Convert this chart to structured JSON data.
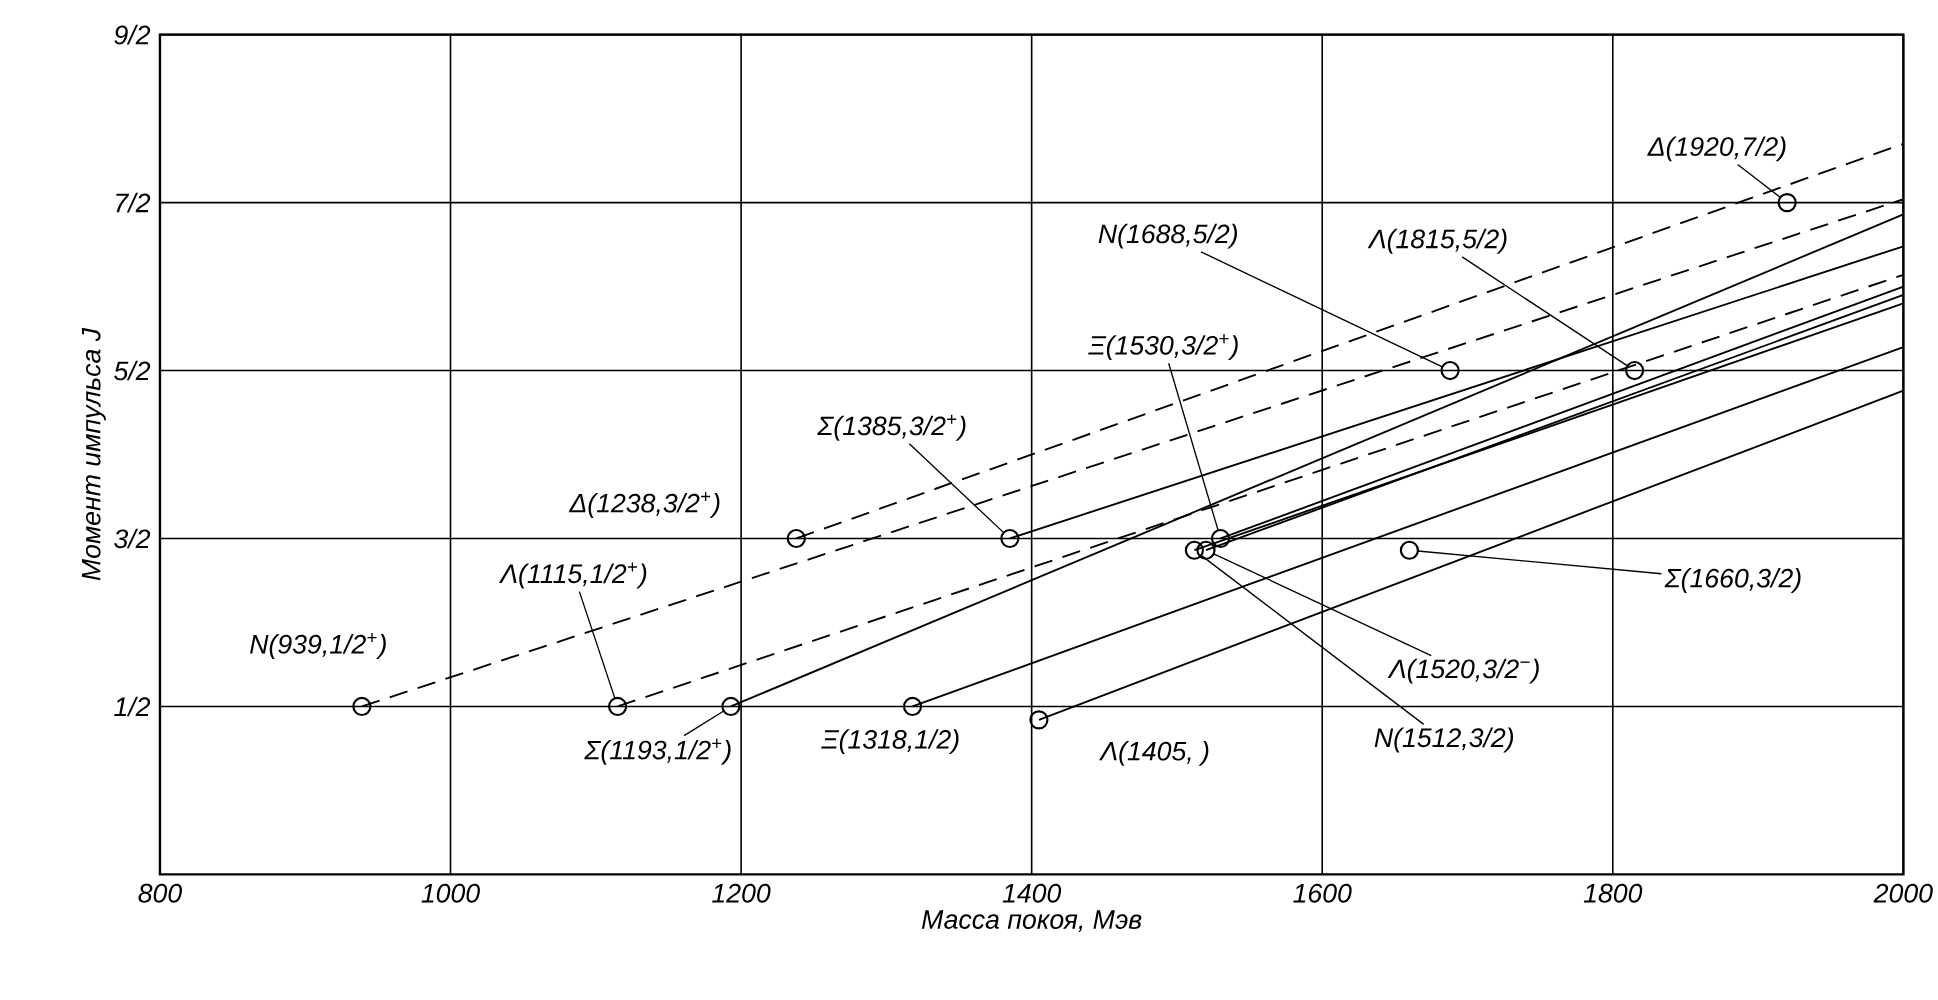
{
  "chart_data": {
    "type": "line",
    "xlabel": "Масса покоя, Мэв",
    "ylabel": "Момент импульса J",
    "xlim": [
      800,
      2000
    ],
    "ylim": [
      -0.5,
      4.5
    ],
    "xticks": [
      800,
      1000,
      1200,
      1400,
      1600,
      1800,
      2000
    ],
    "yticks": [
      {
        "value": 0.5,
        "label": "1/2"
      },
      {
        "value": 1.5,
        "label": "3/2"
      },
      {
        "value": 2.5,
        "label": "5/2"
      },
      {
        "value": 3.5,
        "label": "7/2"
      },
      {
        "value": 4.5,
        "label": "9/2"
      }
    ],
    "grid": true,
    "series": [
      {
        "type": "line",
        "line_style": "dashed",
        "marker": "none",
        "color": "#000000",
        "x": [
          1238,
          2000
        ],
        "values": [
          1.5,
          3.85
        ]
      },
      {
        "type": "line",
        "line_style": "dashed",
        "marker": "none",
        "color": "#000000",
        "x": [
          939,
          2000
        ],
        "values": [
          0.5,
          3.52
        ]
      },
      {
        "type": "line",
        "line_style": "dashed",
        "marker": "none",
        "color": "#000000",
        "x": [
          1115,
          2000
        ],
        "values": [
          0.5,
          3.07
        ]
      },
      {
        "type": "line",
        "line_style": "solid",
        "marker": "none",
        "color": "#000000",
        "x": [
          1193,
          2000
        ],
        "values": [
          0.5,
          3.43
        ]
      },
      {
        "type": "line",
        "line_style": "solid",
        "marker": "none",
        "color": "#000000",
        "x": [
          1385,
          2000
        ],
        "values": [
          1.5,
          3.24
        ]
      },
      {
        "type": "line",
        "line_style": "solid",
        "marker": "none",
        "color": "#000000",
        "x": [
          1530,
          2000
        ],
        "values": [
          1.5,
          3.0
        ]
      },
      {
        "type": "line",
        "line_style": "solid",
        "marker": "none",
        "color": "#000000",
        "x": [
          1520,
          2000
        ],
        "values": [
          1.43,
          2.95
        ]
      },
      {
        "type": "line",
        "line_style": "solid",
        "marker": "none",
        "color": "#000000",
        "x": [
          1512,
          2000
        ],
        "values": [
          1.43,
          2.9
        ]
      },
      {
        "type": "line",
        "line_style": "solid",
        "marker": "none",
        "color": "#000000",
        "x": [
          1318,
          2000
        ],
        "values": [
          0.5,
          2.64
        ]
      },
      {
        "type": "line",
        "line_style": "solid",
        "marker": "none",
        "color": "#000000",
        "x": [
          1405,
          2000
        ],
        "values": [
          0.42,
          2.38
        ]
      },
      {
        "type": "scatter",
        "marker": "circle",
        "color": "#000000",
        "x": [
          939,
          1115,
          1193,
          1318,
          1238,
          1385,
          1530,
          1688,
          1815,
          1920
        ],
        "values": [
          0.5,
          0.5,
          0.5,
          0.5,
          1.5,
          1.5,
          1.5,
          2.5,
          2.5,
          3.5
        ]
      },
      {
        "type": "scatter",
        "marker": "circle",
        "color": "#000000",
        "x": [
          1405,
          1512,
          1520,
          1660
        ],
        "values": [
          0.42,
          1.43,
          1.43,
          1.43
        ]
      }
    ],
    "annotations": [
      {
        "text": "N(939,1/2$^{+}$)",
        "x": 939,
        "y": 0.5
      },
      {
        "text": "Λ(1115,1/2$^{+}$)",
        "x": 1115,
        "y": 0.5
      },
      {
        "text": "Σ(1193,1/2$^{+}$)",
        "x": 1193,
        "y": 0.5
      },
      {
        "text": "Δ(1238,3/2$^{+}$)",
        "x": 1238,
        "y": 1.5
      },
      {
        "text": "Σ(1385,3/2$^{+}$)",
        "x": 1385,
        "y": 1.5
      },
      {
        "text": "Ξ(1318,1/2)",
        "x": 1318,
        "y": 0.5
      },
      {
        "text": "Λ(1405,    )",
        "x": 1405,
        "y": 0.42
      },
      {
        "text": "Ξ(1530,3/2$^{+}$)",
        "x": 1530,
        "y": 1.5
      },
      {
        "text": "N(1688,5/2)",
        "x": 1688,
        "y": 2.5
      },
      {
        "text": "Λ(1815,5/2)",
        "x": 1815,
        "y": 2.5
      },
      {
        "text": "Δ(1920,7/2)",
        "x": 1920,
        "y": 3.5
      },
      {
        "text": "Σ(1660,3/2)",
        "x": 1660,
        "y": 1.43
      },
      {
        "text": "Λ(1520,3/2$^{−}$)",
        "x": 1520,
        "y": 1.43
      },
      {
        "text": "N(1512,3/2)",
        "x": 1512,
        "y": 1.43
      }
    ]
  }
}
